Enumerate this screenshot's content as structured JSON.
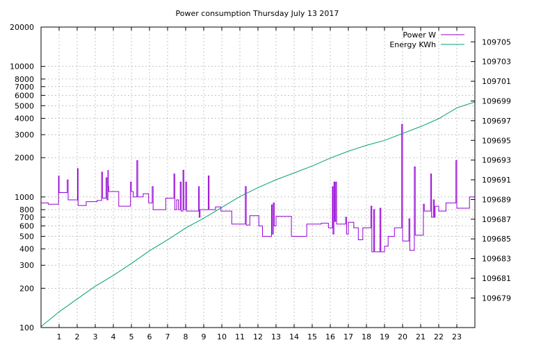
{
  "chart_data": {
    "type": "line",
    "title": "Power consumption Thursday July 13 2017",
    "x_ticks": [
      1,
      2,
      3,
      4,
      5,
      6,
      7,
      8,
      9,
      10,
      11,
      12,
      13,
      14,
      15,
      16,
      17,
      18,
      19,
      20,
      21,
      22,
      23
    ],
    "xlim": [
      0,
      24
    ],
    "y_left": {
      "scale": "log",
      "lim": [
        100,
        20000
      ],
      "ticks": [
        100,
        200,
        300,
        400,
        500,
        600,
        700,
        800,
        1000,
        2000,
        3000,
        4000,
        5000,
        6000,
        7000,
        8000,
        10000,
        20000
      ]
    },
    "y_right": {
      "scale": "linear",
      "lim": [
        109676,
        109706.5
      ],
      "ticks": [
        109679,
        109681,
        109683,
        109685,
        109687,
        109689,
        109691,
        109693,
        109695,
        109697,
        109699,
        109701,
        109703,
        109705
      ]
    },
    "grid": true,
    "legend_position": "top-right",
    "series": [
      {
        "name": "Power W",
        "axis": "left",
        "color": "#9400d3",
        "points": [
          [
            0.0,
            900
          ],
          [
            0.4,
            880
          ],
          [
            0.95,
            880
          ],
          [
            0.97,
            1450
          ],
          [
            1.0,
            1080
          ],
          [
            1.4,
            1080
          ],
          [
            1.45,
            1350
          ],
          [
            1.5,
            950
          ],
          [
            2.0,
            950
          ],
          [
            2.02,
            1650
          ],
          [
            2.05,
            860
          ],
          [
            2.45,
            860
          ],
          [
            2.5,
            920
          ],
          [
            3.0,
            920
          ],
          [
            3.1,
            940
          ],
          [
            3.3,
            940
          ],
          [
            3.35,
            1550
          ],
          [
            3.4,
            980
          ],
          [
            3.55,
            980
          ],
          [
            3.6,
            1400
          ],
          [
            3.65,
            950
          ],
          [
            3.7,
            1600
          ],
          [
            3.72,
            1200
          ],
          [
            3.75,
            1100
          ],
          [
            4.0,
            1100
          ],
          [
            4.1,
            1100
          ],
          [
            4.2,
            1100
          ],
          [
            4.3,
            850
          ],
          [
            4.9,
            850
          ],
          [
            4.95,
            1300
          ],
          [
            5.0,
            1100
          ],
          [
            5.1,
            1000
          ],
          [
            5.2,
            1000
          ],
          [
            5.3,
            1900
          ],
          [
            5.35,
            1000
          ],
          [
            5.6,
            1000
          ],
          [
            5.65,
            1060
          ],
          [
            5.9,
            1060
          ],
          [
            5.95,
            900
          ],
          [
            6.1,
            900
          ],
          [
            6.15,
            1200
          ],
          [
            6.2,
            800
          ],
          [
            6.8,
            800
          ],
          [
            6.9,
            980
          ],
          [
            7.3,
            980
          ],
          [
            7.35,
            1500
          ],
          [
            7.4,
            800
          ],
          [
            7.5,
            950
          ],
          [
            7.6,
            800
          ],
          [
            7.7,
            1300
          ],
          [
            7.75,
            780
          ],
          [
            7.8,
            780
          ],
          [
            7.85,
            1600
          ],
          [
            7.9,
            800
          ],
          [
            8.0,
            1300
          ],
          [
            8.05,
            780
          ],
          [
            8.7,
            780
          ],
          [
            8.72,
            1200
          ],
          [
            8.75,
            700
          ],
          [
            8.8,
            800
          ],
          [
            9.2,
            800
          ],
          [
            9.25,
            1450
          ],
          [
            9.3,
            800
          ],
          [
            9.6,
            800
          ],
          [
            9.65,
            840
          ],
          [
            9.9,
            840
          ],
          [
            9.95,
            780
          ],
          [
            10.5,
            780
          ],
          [
            10.55,
            620
          ],
          [
            11.2,
            620
          ],
          [
            11.3,
            1200
          ],
          [
            11.35,
            610
          ],
          [
            11.5,
            610
          ],
          [
            11.55,
            720
          ],
          [
            11.9,
            720
          ],
          [
            12.0,
            720
          ],
          [
            12.05,
            600
          ],
          [
            12.2,
            600
          ],
          [
            12.25,
            500
          ],
          [
            12.7,
            500
          ],
          [
            12.75,
            870
          ],
          [
            12.8,
            520
          ],
          [
            12.85,
            900
          ],
          [
            12.9,
            600
          ],
          [
            13.0,
            710
          ],
          [
            13.8,
            710
          ],
          [
            13.85,
            500
          ],
          [
            14.6,
            500
          ],
          [
            14.7,
            620
          ],
          [
            15.4,
            620
          ],
          [
            15.5,
            630
          ],
          [
            15.8,
            630
          ],
          [
            15.9,
            580
          ],
          [
            16.1,
            580
          ],
          [
            16.12,
            1200
          ],
          [
            16.15,
            520
          ],
          [
            16.2,
            1300
          ],
          [
            16.25,
            650
          ],
          [
            16.3,
            1300
          ],
          [
            16.35,
            620
          ],
          [
            16.8,
            620
          ],
          [
            16.85,
            700
          ],
          [
            16.9,
            520
          ],
          [
            17.0,
            640
          ],
          [
            17.2,
            640
          ],
          [
            17.3,
            580
          ],
          [
            17.5,
            580
          ],
          [
            17.55,
            470
          ],
          [
            17.7,
            470
          ],
          [
            17.8,
            580
          ],
          [
            18.2,
            580
          ],
          [
            18.25,
            850
          ],
          [
            18.3,
            380
          ],
          [
            18.4,
            800
          ],
          [
            18.45,
            380
          ],
          [
            18.7,
            380
          ],
          [
            18.75,
            820
          ],
          [
            18.8,
            380
          ],
          [
            18.9,
            380
          ],
          [
            19.0,
            420
          ],
          [
            19.1,
            420
          ],
          [
            19.2,
            500
          ],
          [
            19.5,
            500
          ],
          [
            19.55,
            580
          ],
          [
            19.9,
            580
          ],
          [
            19.95,
            3600
          ],
          [
            20.0,
            460
          ],
          [
            20.3,
            460
          ],
          [
            20.35,
            680
          ],
          [
            20.4,
            390
          ],
          [
            20.6,
            390
          ],
          [
            20.65,
            1700
          ],
          [
            20.7,
            510
          ],
          [
            21.1,
            510
          ],
          [
            21.15,
            880
          ],
          [
            21.2,
            780
          ],
          [
            21.5,
            780
          ],
          [
            21.55,
            1500
          ],
          [
            21.6,
            700
          ],
          [
            21.7,
            950
          ],
          [
            21.75,
            700
          ],
          [
            21.8,
            850
          ],
          [
            22.0,
            780
          ],
          [
            22.3,
            780
          ],
          [
            22.4,
            900
          ],
          [
            22.9,
            900
          ],
          [
            22.95,
            1900
          ],
          [
            23.0,
            820
          ],
          [
            23.6,
            820
          ],
          [
            23.7,
            1000
          ],
          [
            24.0,
            1000
          ]
        ]
      },
      {
        "name": "Energy KWh",
        "axis": "right",
        "color": "#009e73",
        "points": [
          [
            0.0,
            109676.1
          ],
          [
            1.0,
            109677.6
          ],
          [
            2.0,
            109678.9
          ],
          [
            3.0,
            109680.2
          ],
          [
            4.0,
            109681.3
          ],
          [
            5.0,
            109682.5
          ],
          [
            6.0,
            109683.8
          ],
          [
            7.0,
            109684.9
          ],
          [
            8.0,
            109686.1
          ],
          [
            9.0,
            109687.1
          ],
          [
            10.0,
            109688.2
          ],
          [
            11.0,
            109689.3
          ],
          [
            12.0,
            109690.2
          ],
          [
            13.0,
            109691.0
          ],
          [
            14.0,
            109691.7
          ],
          [
            15.0,
            109692.4
          ],
          [
            16.0,
            109693.2
          ],
          [
            17.0,
            109693.9
          ],
          [
            18.0,
            109694.5
          ],
          [
            19.0,
            109695.0
          ],
          [
            20.0,
            109695.7
          ],
          [
            21.0,
            109696.4
          ],
          [
            22.0,
            109697.2
          ],
          [
            23.0,
            109698.3
          ],
          [
            24.0,
            109698.9
          ]
        ]
      }
    ]
  }
}
